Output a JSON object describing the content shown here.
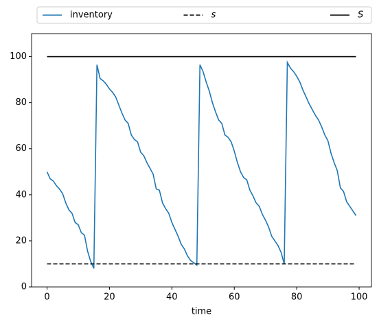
{
  "chart_data": {
    "type": "line",
    "xlabel": "time",
    "x": [
      0,
      1,
      2,
      3,
      4,
      5,
      6,
      7,
      8,
      9,
      10,
      11,
      12,
      13,
      14,
      15,
      16,
      17,
      18,
      19,
      20,
      21,
      22,
      23,
      24,
      25,
      26,
      27,
      28,
      29,
      30,
      31,
      32,
      33,
      34,
      35,
      36,
      37,
      38,
      39,
      40,
      41,
      42,
      43,
      44,
      45,
      46,
      47,
      48,
      49,
      50,
      51,
      52,
      53,
      54,
      55,
      56,
      57,
      58,
      59,
      60,
      61,
      62,
      63,
      64,
      65,
      66,
      67,
      68,
      69,
      70,
      71,
      72,
      73,
      74,
      75,
      76,
      77,
      78,
      79,
      80,
      81,
      82,
      83,
      84,
      85,
      86,
      87,
      88,
      89,
      90,
      91,
      92,
      93,
      94,
      95,
      96,
      97,
      98,
      99
    ],
    "series": [
      {
        "name": "inventory",
        "color": "#1f77b4",
        "values": [
          50,
          47,
          46,
          44,
          42.5,
          40.5,
          36.5,
          33.5,
          32,
          28,
          27,
          23.5,
          22.5,
          15.5,
          11,
          8,
          96.5,
          90.5,
          89.5,
          88,
          86,
          84.5,
          82.5,
          79,
          75.5,
          72.5,
          71,
          66,
          64,
          63,
          58.5,
          57,
          54,
          51.5,
          49,
          42.5,
          42,
          36.5,
          34,
          32,
          28,
          25,
          22,
          18.5,
          16.5,
          13.5,
          11.5,
          10.5,
          9.5,
          96.5,
          93.5,
          89,
          85,
          80,
          76,
          72.5,
          71,
          66,
          65,
          63,
          59,
          54,
          50,
          47.5,
          46.5,
          42,
          39.5,
          36.5,
          35,
          31.5,
          29,
          26,
          22,
          20,
          18,
          15,
          10,
          97.5,
          95,
          93.5,
          91.5,
          89,
          85.5,
          82.5,
          79.5,
          77,
          74.5,
          72.5,
          69.5,
          66,
          63.5,
          58,
          54,
          50.5,
          43,
          41.5,
          37,
          35,
          33,
          31
        ]
      },
      {
        "name": "s",
        "color": "#000000",
        "dashed": true,
        "value": 10
      },
      {
        "name": "S",
        "color": "#000000",
        "dashed": false,
        "value": 100
      }
    ],
    "xlim": [
      -4.95,
      103.95
    ],
    "ylim": [
      0,
      110
    ],
    "xticks": [
      0,
      20,
      40,
      60,
      80,
      100
    ],
    "yticks": [
      0,
      20,
      40,
      60,
      80,
      100
    ],
    "legend": "top"
  }
}
